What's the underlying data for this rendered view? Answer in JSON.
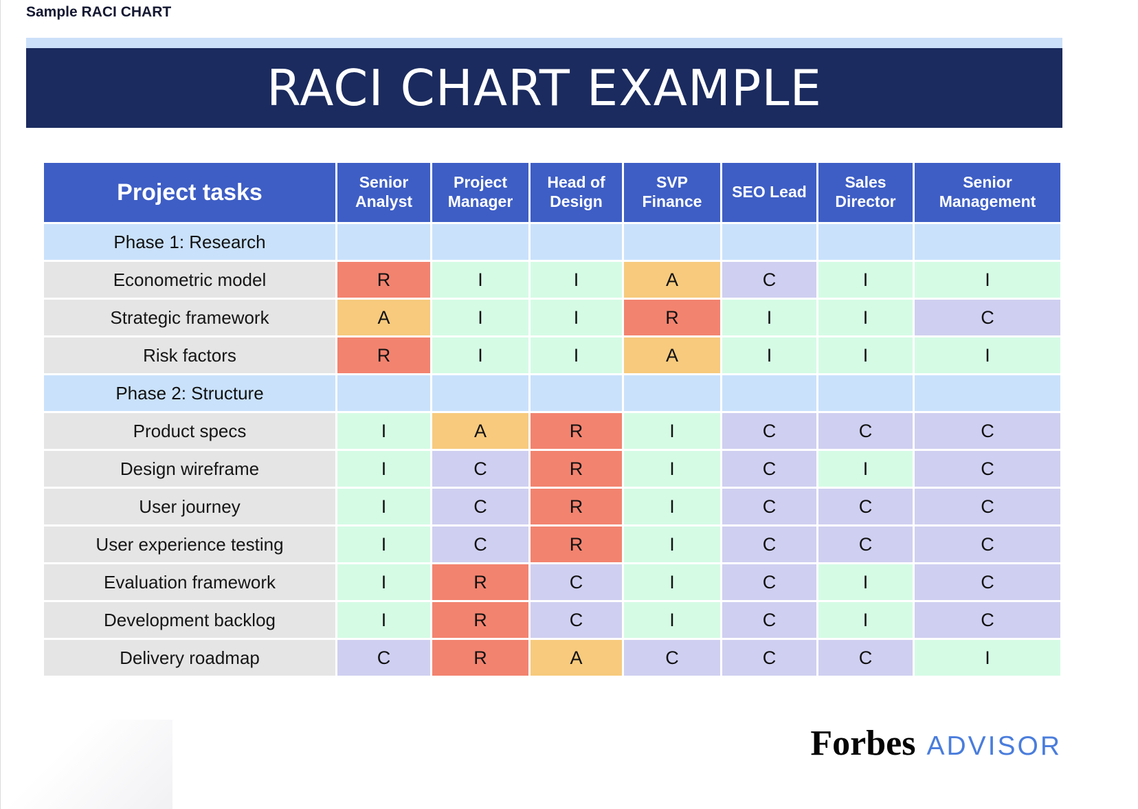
{
  "page": {
    "top_label": "Sample RACI CHART"
  },
  "colors": {
    "banner_bg": "#1B2B5F",
    "banner_strip": "#CCE0F9",
    "header_bg": "#3E5EC5",
    "phase_row_bg": "#C9E1FB",
    "task_label_bg": "#E5E5E5",
    "R": "#F2836F",
    "A": "#F7CA7D",
    "C": "#CFCFF1",
    "I": "#D5FBE5",
    "advisor_blue": "#4A7DDC"
  },
  "chart_data": {
    "type": "table",
    "title": "RACI CHART EXAMPLE",
    "task_column_header": "Project tasks",
    "role_columns": [
      "Senior Analyst",
      "Project Manager",
      "Head of Design",
      "SVP Finance",
      "SEO Lead",
      "Sales Director",
      "Senior Management"
    ],
    "rows": [
      {
        "type": "phase",
        "label": "Phase 1: Research"
      },
      {
        "type": "task",
        "label": "Econometric model",
        "values": [
          "R",
          "I",
          "I",
          "A",
          "C",
          "I",
          "I"
        ]
      },
      {
        "type": "task",
        "label": "Strategic framework",
        "values": [
          "A",
          "I",
          "I",
          "R",
          "I",
          "I",
          "C"
        ]
      },
      {
        "type": "task",
        "label": "Risk factors",
        "values": [
          "R",
          "I",
          "I",
          "A",
          "I",
          "I",
          "I"
        ]
      },
      {
        "type": "phase",
        "label": "Phase 2: Structure"
      },
      {
        "type": "task",
        "label": "Product specs",
        "values": [
          "I",
          "A",
          "R",
          "I",
          "C",
          "C",
          "C"
        ]
      },
      {
        "type": "task",
        "label": "Design wireframe",
        "values": [
          "I",
          "C",
          "R",
          "I",
          "C",
          "I",
          "C"
        ]
      },
      {
        "type": "task",
        "label": "User journey",
        "values": [
          "I",
          "C",
          "R",
          "I",
          "C",
          "C",
          "C"
        ]
      },
      {
        "type": "task",
        "label": "User experience testing",
        "values": [
          "I",
          "C",
          "R",
          "I",
          "C",
          "C",
          "C"
        ]
      },
      {
        "type": "task",
        "label": "Evaluation framework",
        "values": [
          "I",
          "R",
          "C",
          "I",
          "C",
          "I",
          "C"
        ]
      },
      {
        "type": "task",
        "label": "Development backlog",
        "values": [
          "I",
          "R",
          "C",
          "I",
          "C",
          "I",
          "C"
        ]
      },
      {
        "type": "task",
        "label": "Delivery roadmap",
        "values": [
          "C",
          "R",
          "A",
          "C",
          "C",
          "C",
          "I"
        ]
      }
    ]
  },
  "footer": {
    "brand": "Forbes",
    "brand_suffix": "ADVISOR"
  }
}
